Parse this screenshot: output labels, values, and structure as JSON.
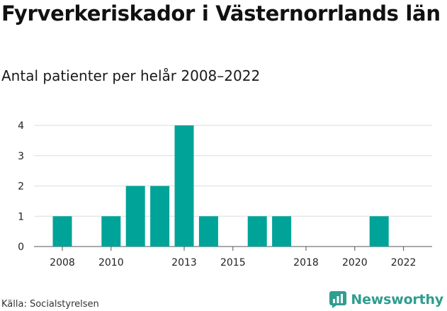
{
  "header": {
    "title": "Fyrverkeriskador i Västernorrlands län",
    "subtitle": "Antal patienter per helår 2008–2022"
  },
  "footer": {
    "source": "Källa: Socialstyrelsen",
    "brand": "Newsworthy"
  },
  "colors": {
    "bar": "#00a398",
    "grid": "#dddddd",
    "brand": "#2f9d8f"
  },
  "chart_data": {
    "type": "bar",
    "x": [
      2008,
      2009,
      2010,
      2011,
      2012,
      2013,
      2014,
      2015,
      2016,
      2017,
      2018,
      2019,
      2020,
      2021,
      2022
    ],
    "values": [
      1,
      0,
      1,
      2,
      2,
      4,
      1,
      0,
      1,
      1,
      0,
      0,
      0,
      1,
      0
    ],
    "x_tick_labels": [
      "2008",
      "2010",
      "2013",
      "2015",
      "2018",
      "2020",
      "2022"
    ],
    "y_tick_labels": [
      "0",
      "1",
      "2",
      "3",
      "4"
    ],
    "ylim": [
      0,
      4
    ],
    "grid": true,
    "title": "Fyrverkeriskador i Västernorrlands län",
    "subtitle": "Antal patienter per helår 2008–2022",
    "xlabel": "",
    "ylabel": ""
  }
}
